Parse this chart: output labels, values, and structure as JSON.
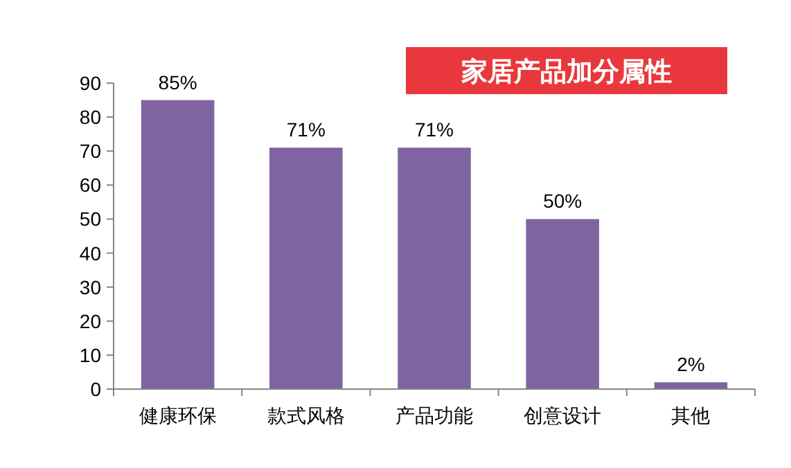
{
  "chart_data": {
    "type": "bar",
    "title": "家居产品加分属性",
    "categories": [
      "健康环保",
      "款式风格",
      "产品功能",
      "创意设计",
      "其他"
    ],
    "values": [
      85,
      71,
      71,
      50,
      2
    ],
    "value_labels": [
      "85%",
      "71%",
      "71%",
      "50%",
      "2%"
    ],
    "color": "#8064a2",
    "ylim": [
      0,
      90
    ],
    "yticks": [
      0,
      10,
      20,
      30,
      40,
      50,
      60,
      70,
      80,
      90
    ],
    "grid": false
  }
}
